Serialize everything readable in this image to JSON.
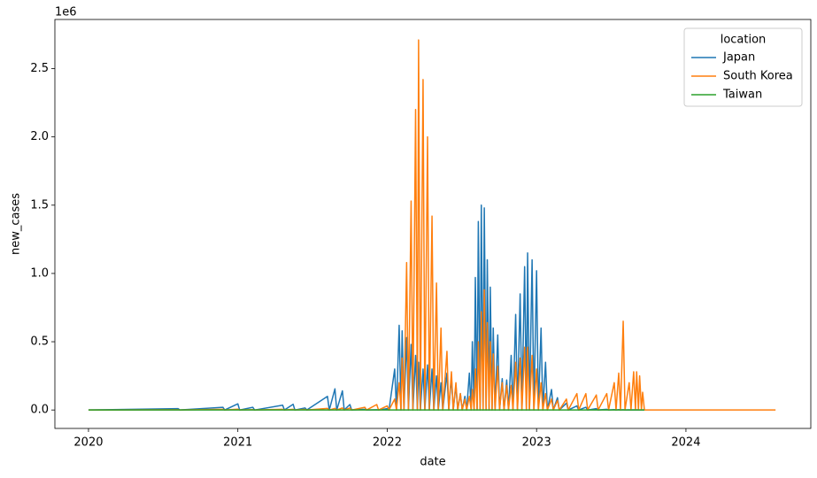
{
  "chart_data": {
    "type": "line",
    "x_label": "date",
    "y_label": "new_cases",
    "y_offset_label": "1e6",
    "legend_title": "location",
    "legend": "upper right",
    "xlim": [
      2019.775,
      2024.836
    ],
    "xticks": [
      2020,
      2021,
      2022,
      2023,
      2024
    ],
    "ylim": [
      -135000,
      2860000
    ],
    "yticks": [
      {
        "value": 0,
        "label": "0.0"
      },
      {
        "value": 500000,
        "label": "0.5"
      },
      {
        "value": 1000000,
        "label": "1.0"
      },
      {
        "value": 1500000,
        "label": "1.5"
      },
      {
        "value": 2000000,
        "label": "2.0"
      },
      {
        "value": 2500000,
        "label": "2.5"
      }
    ],
    "x": [
      2020.0,
      2020.6,
      2020.612,
      2020.9,
      2020.912,
      2021.0,
      2021.012,
      2021.1,
      2021.112,
      2021.3,
      2021.312,
      2021.37,
      2021.382,
      2021.45,
      2021.462,
      2021.6,
      2021.612,
      2021.65,
      2021.662,
      2021.7,
      2021.712,
      2021.75,
      2021.762,
      2021.85,
      2021.862,
      2021.93,
      2021.942,
      2022.0,
      2022.012,
      2022.05,
      2022.062,
      2022.08,
      2022.092,
      2022.1,
      2022.112,
      2022.13,
      2022.142,
      2022.16,
      2022.172,
      2022.19,
      2022.202,
      2022.21,
      2022.222,
      2022.24,
      2022.252,
      2022.27,
      2022.282,
      2022.3,
      2022.312,
      2022.33,
      2022.342,
      2022.36,
      2022.372,
      2022.4,
      2022.412,
      2022.43,
      2022.442,
      2022.46,
      2022.472,
      2022.49,
      2022.502,
      2022.52,
      2022.532,
      2022.55,
      2022.562,
      2022.57,
      2022.582,
      2022.59,
      2022.602,
      2022.61,
      2022.622,
      2022.63,
      2022.642,
      2022.65,
      2022.662,
      2022.67,
      2022.682,
      2022.69,
      2022.702,
      2022.71,
      2022.722,
      2022.74,
      2022.752,
      2022.77,
      2022.782,
      2022.8,
      2022.812,
      2022.83,
      2022.842,
      2022.86,
      2022.872,
      2022.89,
      2022.902,
      2022.92,
      2022.932,
      2022.94,
      2022.952,
      2022.97,
      2022.982,
      2023.0,
      2023.012,
      2023.03,
      2023.042,
      2023.06,
      2023.072,
      2023.1,
      2023.112,
      2023.14,
      2023.152,
      2023.2,
      2023.212,
      2023.27,
      2023.282,
      2023.33,
      2023.342,
      2023.4,
      2023.412,
      2023.47,
      2023.482,
      2023.52,
      2023.532,
      2023.55,
      2023.562,
      2023.58,
      2023.592,
      2023.62,
      2023.632,
      2023.65,
      2023.662,
      2023.67,
      2023.682,
      2023.69,
      2023.702,
      2023.71,
      2023.722,
      2024.0,
      2024.6
    ],
    "series": [
      {
        "name": "Japan",
        "color": "#1f77b4",
        "values": [
          0,
          10000,
          0,
          20000,
          0,
          45000,
          0,
          20000,
          0,
          35000,
          0,
          42000,
          0,
          15000,
          0,
          100000,
          0,
          155000,
          0,
          140000,
          0,
          40000,
          0,
          5000,
          0,
          2000,
          0,
          10000,
          0,
          300000,
          0,
          620000,
          0,
          580000,
          0,
          530000,
          0,
          480000,
          0,
          400000,
          0,
          350000,
          0,
          300000,
          0,
          330000,
          0,
          300000,
          0,
          250000,
          0,
          200000,
          0,
          270000,
          0,
          240000,
          0,
          180000,
          0,
          120000,
          0,
          100000,
          0,
          270000,
          0,
          500000,
          0,
          970000,
          0,
          1380000,
          0,
          1500000,
          0,
          1480000,
          0,
          1100000,
          0,
          900000,
          0,
          600000,
          0,
          550000,
          0,
          230000,
          0,
          220000,
          0,
          400000,
          0,
          700000,
          0,
          850000,
          0,
          1050000,
          0,
          1150000,
          0,
          1100000,
          0,
          1020000,
          0,
          600000,
          0,
          350000,
          0,
          150000,
          0,
          90000,
          0,
          50000,
          0,
          30000,
          0,
          20000,
          0,
          10000,
          0,
          5000,
          0,
          3000,
          0,
          3000,
          0,
          2000,
          0,
          1000,
          0,
          1000,
          0,
          1000,
          0,
          500,
          0,
          0,
          0,
          null,
          null
        ]
      },
      {
        "name": "South Korea",
        "color": "#ff7f0e",
        "values": [
          0,
          2000,
          0,
          5000,
          0,
          6000,
          0,
          3000,
          0,
          5000,
          0,
          5000,
          0,
          4000,
          0,
          12000,
          0,
          12000,
          0,
          15000,
          0,
          14000,
          0,
          20000,
          0,
          40000,
          0,
          30000,
          0,
          80000,
          0,
          200000,
          0,
          380000,
          0,
          1080000,
          0,
          1530000,
          0,
          2200000,
          0,
          2710000,
          0,
          2420000,
          0,
          2000000,
          0,
          1420000,
          0,
          930000,
          0,
          600000,
          0,
          430000,
          0,
          280000,
          0,
          200000,
          0,
          120000,
          0,
          80000,
          0,
          100000,
          0,
          150000,
          0,
          300000,
          0,
          500000,
          0,
          720000,
          0,
          880000,
          0,
          640000,
          0,
          500000,
          0,
          410000,
          0,
          320000,
          0,
          200000,
          0,
          180000,
          0,
          180000,
          0,
          350000,
          0,
          380000,
          0,
          460000,
          0,
          460000,
          0,
          400000,
          0,
          300000,
          0,
          200000,
          0,
          120000,
          0,
          80000,
          0,
          70000,
          0,
          80000,
          0,
          120000,
          0,
          120000,
          0,
          110000,
          0,
          120000,
          0,
          200000,
          0,
          270000,
          0,
          650000,
          0,
          200000,
          0,
          280000,
          0,
          280000,
          0,
          250000,
          0,
          130000,
          0,
          0,
          0
        ]
      },
      {
        "name": "Taiwan",
        "color": "#2ca02c",
        "values": [
          0,
          0,
          0,
          0,
          0,
          0,
          0,
          0,
          0,
          0,
          0,
          0,
          0,
          0,
          0,
          0,
          0,
          0,
          0,
          0,
          0,
          0,
          0,
          0,
          0,
          0,
          0,
          0,
          0,
          0,
          0,
          0,
          0,
          0,
          0,
          0,
          0,
          0,
          0,
          0,
          0,
          0,
          0,
          0,
          0,
          0,
          0,
          0,
          0,
          0,
          0,
          0,
          0,
          0,
          0,
          0,
          0,
          0,
          0,
          0,
          0,
          0,
          0,
          0,
          0,
          0,
          0,
          0,
          0,
          0,
          0,
          0,
          0,
          0,
          0,
          0,
          0,
          0,
          0,
          0,
          0,
          0,
          0,
          0,
          0,
          0,
          0,
          0,
          0,
          0,
          0,
          0,
          0,
          0,
          0,
          0,
          0,
          0,
          0,
          0,
          0,
          0,
          0,
          0,
          0,
          0,
          0,
          0,
          0,
          0,
          0,
          0,
          0,
          0,
          0,
          0,
          0,
          0,
          0,
          0,
          0,
          0,
          0,
          0,
          0,
          0,
          0,
          0,
          0,
          0,
          0,
          0,
          0,
          0,
          0,
          null,
          null
        ]
      }
    ]
  }
}
